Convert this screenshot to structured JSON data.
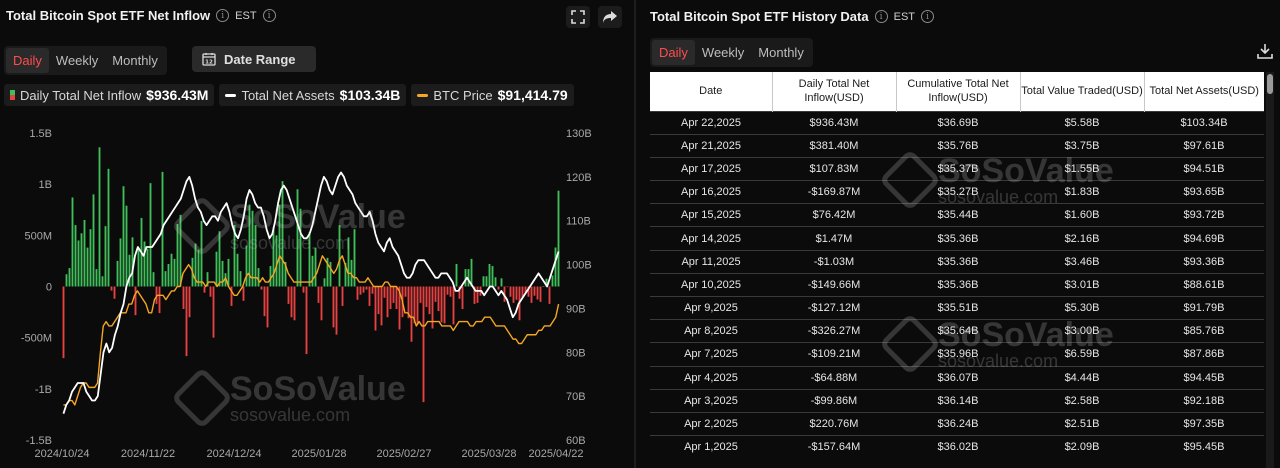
{
  "left_panel": {
    "title": "Total Bitcoin Spot ETF Net Inflow",
    "timezone": "EST",
    "tabs": [
      "Daily",
      "Weekly",
      "Monthly"
    ],
    "active_tab": "Daily",
    "date_range_label": "Date Range",
    "legend": [
      {
        "label": "Daily Total Net Inflow",
        "value": "$936.43M",
        "color": "#3fbf5a"
      },
      {
        "label": "Total Net Assets",
        "value": "$103.34B",
        "color": "#ffffff"
      },
      {
        "label": "BTC Price",
        "value": "$91,414.79",
        "color": "#f5a623"
      }
    ]
  },
  "watermark": {
    "brand": "SoSoValue",
    "url": "sosovalue.com"
  },
  "chart_data": {
    "type": "bar",
    "title": "Total Bitcoin Spot ETF Net Inflow",
    "x_tick_labels": [
      "2024/10/24",
      "2024/11/22",
      "2024/12/24",
      "2025/01/28",
      "2025/02/27",
      "2025/03/28",
      "2025/04/22"
    ],
    "y_left_ticks": [
      "1.5B",
      "1B",
      "500M",
      "0",
      "-500M",
      "-1B",
      "-1.5B"
    ],
    "y_left_range": [
      -1500,
      1500
    ],
    "y_left_unit": "M",
    "y_right_ticks": [
      "130B",
      "120B",
      "110B",
      "100B",
      "90B",
      "80B",
      "70B",
      "60B"
    ],
    "y_right_range": [
      60,
      130
    ],
    "grid": false,
    "series": [
      {
        "name": "Daily Total Net Inflow",
        "kind": "bar",
        "axis": "left",
        "color_pos": "#3fbf5a",
        "color_neg": "#e84141",
        "values": [
          -700,
          120,
          180,
          870,
          600,
          450,
          520,
          650,
          380,
          560,
          900,
          170,
          1360,
          100,
          590,
          1150,
          -40,
          -120,
          250,
          470,
          980,
          790,
          310,
          480,
          -280,
          370,
          670,
          440,
          370,
          1010,
          140,
          -170,
          -260,
          1120,
          150,
          220,
          320,
          270,
          610,
          700,
          -220,
          -680,
          -300,
          280,
          420,
          360,
          640,
          -60,
          140,
          -100,
          -500,
          340,
          540,
          250,
          130,
          270,
          -190,
          600,
          320,
          150,
          -140,
          400,
          800,
          740,
          600,
          180,
          -30,
          -290,
          -400,
          200,
          580,
          500,
          800,
          1030,
          240,
          -170,
          -300,
          -330,
          950,
          760,
          -60,
          -660,
          530,
          300,
          380,
          -160,
          -330,
          80,
          280,
          240,
          -400,
          -470,
          600,
          -190,
          230,
          480,
          260,
          560,
          -130,
          -80,
          -60,
          -30,
          -190,
          -70,
          -430,
          -270,
          -380,
          -110,
          -300,
          -220,
          -160,
          -220,
          -420,
          -300,
          -100,
          -310,
          -540,
          -360,
          -370,
          -160,
          -1130,
          -200,
          -270,
          -410,
          -150,
          -240,
          -350,
          -360,
          -80,
          -100,
          -370,
          220,
          -120,
          -220,
          170,
          170,
          270,
          -170,
          -160,
          -90,
          100,
          100,
          220,
          200,
          90,
          -30,
          80,
          -150,
          -1,
          -100,
          -160,
          -130,
          -330,
          -110,
          -65,
          -100,
          -160,
          -90,
          -127,
          -150,
          1,
          76,
          -170,
          108,
          381,
          936
        ]
      },
      {
        "name": "Total Net Assets",
        "kind": "line",
        "axis": "right",
        "color": "#ffffff",
        "values": [
          66,
          68,
          69,
          71,
          72,
          73,
          73,
          73,
          71,
          70,
          69,
          69,
          70,
          75,
          80,
          82,
          80,
          81,
          84,
          86,
          89,
          91,
          95,
          97,
          98,
          102,
          104,
          103,
          102,
          104,
          104,
          104,
          105,
          106,
          107,
          109,
          110,
          111,
          112,
          113,
          114,
          115,
          117,
          119,
          120,
          118,
          115,
          113,
          112,
          110,
          109,
          110,
          111,
          111,
          110,
          112,
          113,
          114,
          112,
          109,
          107,
          106,
          108,
          111,
          115,
          117,
          116,
          114,
          113,
          113,
          111,
          108,
          106,
          107,
          110,
          114,
          117,
          118,
          117,
          115,
          113,
          111,
          109,
          107,
          106,
          106,
          107,
          109,
          112,
          115,
          118,
          120,
          119,
          117,
          116,
          118,
          120,
          121,
          120,
          118,
          117,
          116,
          114,
          113,
          112,
          111,
          111,
          112,
          110,
          107,
          105,
          104,
          103,
          105,
          106,
          104,
          103,
          102,
          100,
          98,
          97,
          97,
          98,
          100,
          101,
          101,
          101,
          100,
          99,
          98,
          97,
          97,
          98,
          98,
          98,
          97,
          96,
          94,
          94,
          95,
          96,
          97,
          96,
          95,
          94,
          94,
          94,
          93,
          94,
          95,
          95,
          94,
          93,
          94,
          93,
          92,
          90,
          88,
          89,
          91,
          92,
          93,
          94,
          95,
          96,
          97,
          98,
          97,
          96,
          95,
          97,
          99,
          101,
          103
        ]
      },
      {
        "name": "BTC Price",
        "kind": "line",
        "axis": "right",
        "color": "#f5a623",
        "values": [
          68,
          68,
          69,
          69,
          68,
          70,
          72,
          73,
          73,
          72,
          72,
          72,
          73,
          80,
          86,
          87,
          86,
          86,
          87,
          88,
          89,
          89,
          89,
          91,
          91,
          93,
          94,
          93,
          92,
          91,
          89,
          89,
          92,
          93,
          93,
          93,
          92,
          93,
          94,
          94,
          95,
          95,
          98,
          99,
          100,
          99,
          97,
          96,
          96,
          96,
          95,
          96,
          96,
          96,
          95,
          96,
          96,
          97,
          95,
          94,
          93,
          93,
          94,
          95,
          97,
          98,
          97,
          97,
          97,
          96,
          97,
          96,
          96,
          97,
          98,
          100,
          102,
          101,
          100,
          98,
          97,
          96,
          96,
          96,
          96,
          96,
          96,
          96,
          97,
          98,
          100,
          102,
          101,
          100,
          99,
          98,
          99,
          101,
          102,
          100,
          98,
          98,
          97,
          97,
          96,
          96,
          96,
          97,
          96,
          95,
          95,
          95,
          95,
          96,
          96,
          95,
          95,
          95,
          94,
          92,
          89,
          89,
          88,
          88,
          86,
          87,
          86,
          86,
          87,
          87,
          87,
          87,
          87,
          86,
          86,
          86,
          86,
          85,
          86,
          87,
          87,
          87,
          87,
          86,
          86,
          87,
          87,
          87,
          88,
          88,
          88,
          87,
          86,
          86,
          86,
          86,
          85,
          84,
          83,
          83,
          82,
          82,
          83,
          84,
          84,
          84,
          84,
          85,
          85,
          86,
          86,
          86,
          87,
          88,
          91
        ]
      }
    ]
  },
  "right_panel": {
    "title": "Total Bitcoin Spot ETF History Data",
    "timezone": "EST",
    "tabs": [
      "Daily",
      "Weekly",
      "Monthly"
    ],
    "active_tab": "Daily",
    "columns": [
      "Date",
      "Daily Total Net Inflow(USD)",
      "Cumulative Total Net Inflow(USD)",
      "Total Value Traded(USD)",
      "Total Net Assets(USD)"
    ],
    "rows": [
      [
        "Apr 22,2025",
        "$936.43M",
        "$36.69B",
        "$5.58B",
        "$103.34B"
      ],
      [
        "Apr 21,2025",
        "$381.40M",
        "$35.76B",
        "$3.75B",
        "$97.61B"
      ],
      [
        "Apr 17,2025",
        "$107.83M",
        "$35.37B",
        "$1.55B",
        "$94.51B"
      ],
      [
        "Apr 16,2025",
        "-$169.87M",
        "$35.27B",
        "$1.83B",
        "$93.65B"
      ],
      [
        "Apr 15,2025",
        "$76.42M",
        "$35.44B",
        "$1.60B",
        "$93.72B"
      ],
      [
        "Apr 14,2025",
        "$1.47M",
        "$35.36B",
        "$2.16B",
        "$94.69B"
      ],
      [
        "Apr 11,2025",
        "-$1.03M",
        "$35.36B",
        "$3.46B",
        "$93.36B"
      ],
      [
        "Apr 10,2025",
        "-$149.66M",
        "$35.36B",
        "$3.01B",
        "$88.61B"
      ],
      [
        "Apr 9,2025",
        "-$127.12M",
        "$35.51B",
        "$5.30B",
        "$91.79B"
      ],
      [
        "Apr 8,2025",
        "-$326.27M",
        "$35.64B",
        "$3.00B",
        "$85.76B"
      ],
      [
        "Apr 7,2025",
        "-$109.21M",
        "$35.96B",
        "$6.59B",
        "$87.86B"
      ],
      [
        "Apr 4,2025",
        "-$64.88M",
        "$36.07B",
        "$4.44B",
        "$94.45B"
      ],
      [
        "Apr 3,2025",
        "-$99.86M",
        "$36.14B",
        "$2.58B",
        "$92.18B"
      ],
      [
        "Apr 2,2025",
        "$220.76M",
        "$36.24B",
        "$2.51B",
        "$97.35B"
      ],
      [
        "Apr 1,2025",
        "-$157.64M",
        "$36.02B",
        "$2.09B",
        "$95.45B"
      ]
    ]
  }
}
